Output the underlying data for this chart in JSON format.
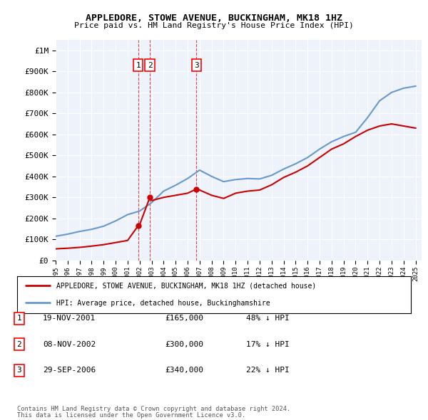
{
  "title": "APPLEDORE, STOWE AVENUE, BUCKINGHAM, MK18 1HZ",
  "subtitle": "Price paid vs. HM Land Registry's House Price Index (HPI)",
  "legend_line1": "APPLEDORE, STOWE AVENUE, BUCKINGHAM, MK18 1HZ (detached house)",
  "legend_line2": "HPI: Average price, detached house, Buckinghamshire",
  "footer1": "Contains HM Land Registry data © Crown copyright and database right 2024.",
  "footer2": "This data is licensed under the Open Government Licence v3.0.",
  "transactions": [
    {
      "num": 1,
      "date": "19-NOV-2001",
      "price": 165000,
      "hpi_diff": "48% ↓ HPI",
      "year": 2001.88
    },
    {
      "num": 2,
      "date": "08-NOV-2002",
      "price": 300000,
      "hpi_diff": "17% ↓ HPI",
      "year": 2002.85
    },
    {
      "num": 3,
      "date": "29-SEP-2006",
      "price": 340000,
      "hpi_diff": "22% ↓ HPI",
      "year": 2006.74
    }
  ],
  "price_color": "#cc0000",
  "hpi_color": "#6699cc",
  "dashed_color": "#cc0000",
  "plot_bg": "#eef2fa",
  "ylim": [
    0,
    1050000
  ],
  "xlim_start": 1995,
  "xlim_end": 2025.5,
  "hpi_years": [
    1995,
    1996,
    1997,
    1998,
    1999,
    2000,
    2001,
    2002,
    2003,
    2004,
    2005,
    2006,
    2007,
    2008,
    2009,
    2010,
    2011,
    2012,
    2013,
    2014,
    2015,
    2016,
    2017,
    2018,
    2019,
    2020,
    2021,
    2022,
    2023,
    2024,
    2025
  ],
  "hpi_values": [
    115000,
    125000,
    138000,
    148000,
    163000,
    188000,
    218000,
    235000,
    275000,
    330000,
    358000,
    390000,
    430000,
    400000,
    375000,
    385000,
    390000,
    388000,
    405000,
    435000,
    460000,
    490000,
    530000,
    565000,
    590000,
    610000,
    680000,
    760000,
    800000,
    820000,
    830000
  ],
  "price_years": [
    1995,
    1996,
    1997,
    1998,
    1999,
    2000,
    2001,
    2001.88,
    2002,
    2002.85,
    2003,
    2004,
    2005,
    2006,
    2006.74,
    2007,
    2008,
    2009,
    2010,
    2011,
    2012,
    2013,
    2014,
    2015,
    2016,
    2017,
    2018,
    2019,
    2020,
    2021,
    2022,
    2023,
    2024,
    2025
  ],
  "price_values": [
    55000,
    58000,
    62000,
    68000,
    75000,
    85000,
    95000,
    165000,
    170000,
    300000,
    285000,
    300000,
    310000,
    320000,
    340000,
    335000,
    310000,
    295000,
    320000,
    330000,
    335000,
    360000,
    395000,
    420000,
    450000,
    490000,
    530000,
    555000,
    590000,
    620000,
    640000,
    650000,
    640000,
    630000
  ]
}
